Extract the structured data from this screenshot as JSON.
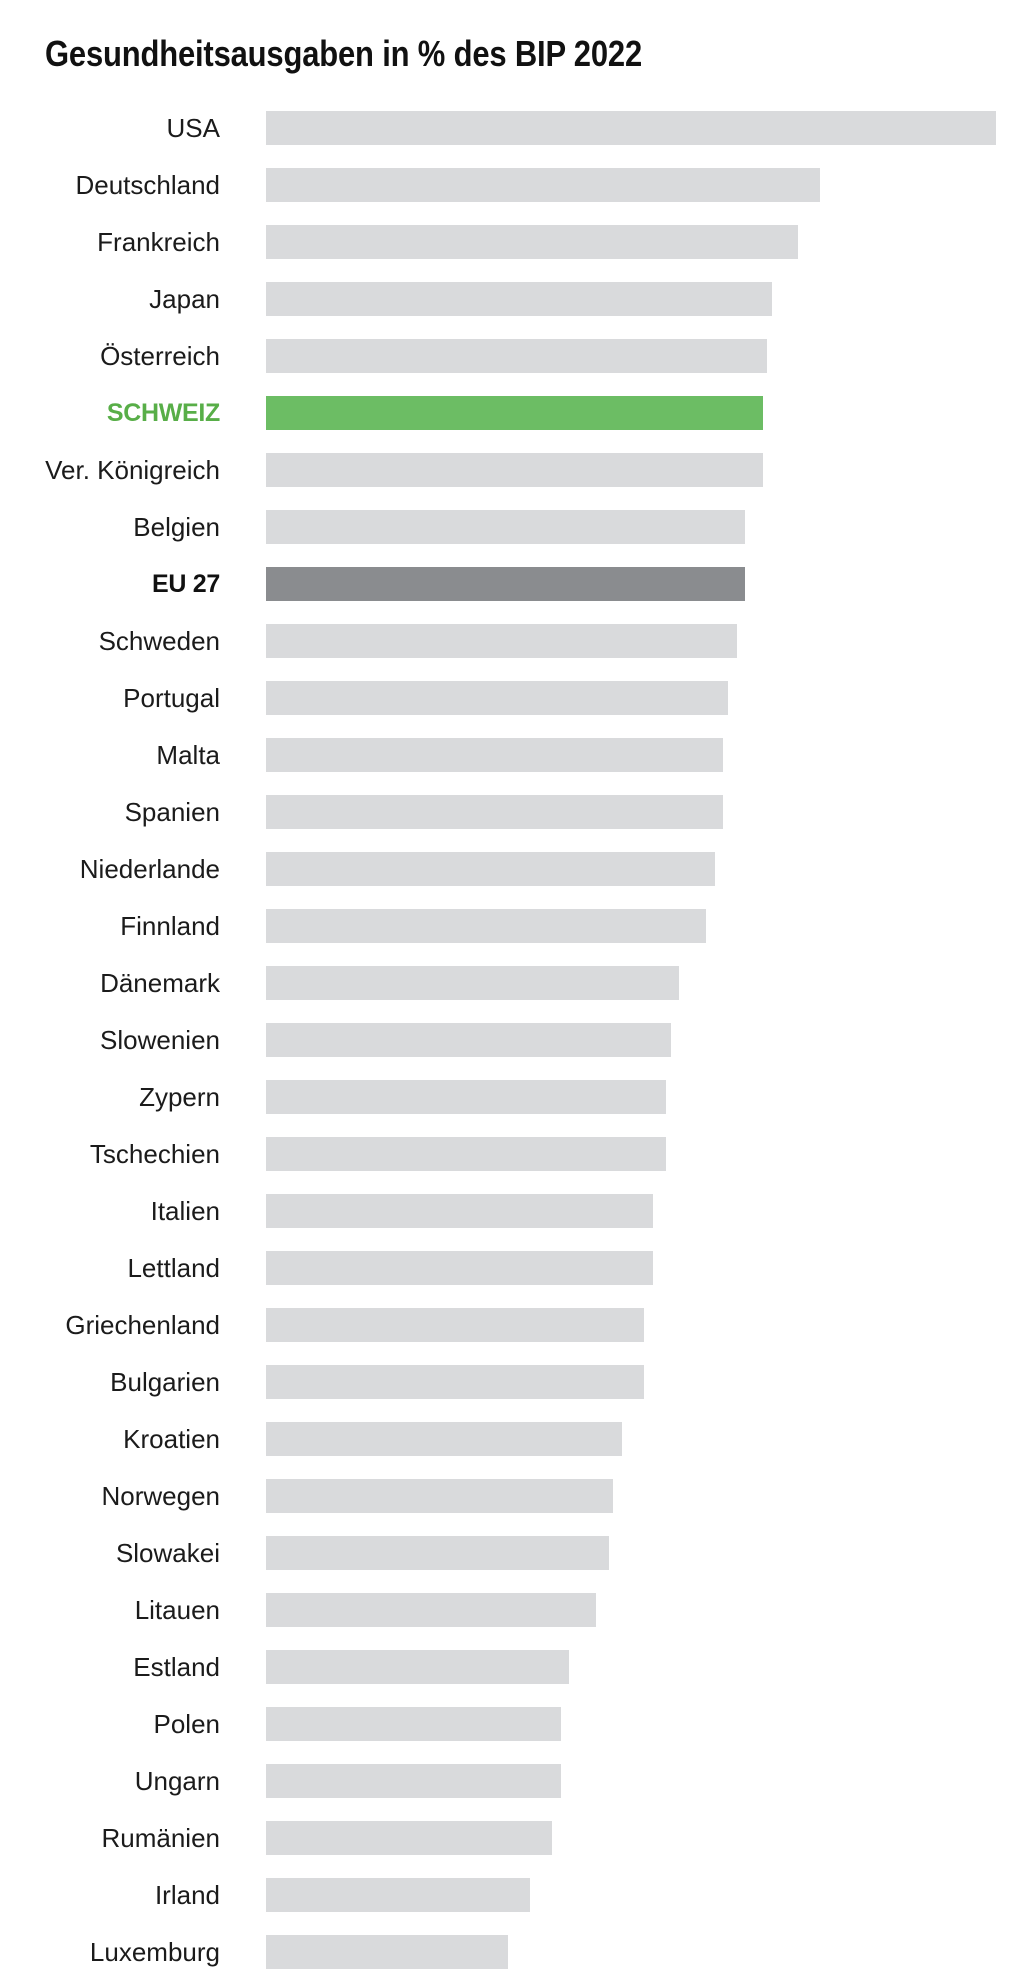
{
  "chart_data": {
    "type": "bar",
    "orientation": "horizontal",
    "title": "Gesundheitsausgaben in % des BIP 2022",
    "xlabel": "",
    "ylabel": "",
    "xlim": [
      0,
      16.6
    ],
    "grid": false,
    "legend": "none",
    "categories": [
      "USA",
      "Deutschland",
      "Frankreich",
      "Japan",
      "Österreich",
      "SCHWEIZ",
      "Ver. Königreich",
      "Belgien",
      "EU 27",
      "Schweden",
      "Portugal",
      "Malta",
      "Spanien",
      "Niederlande",
      "Finnland",
      "Dänemark",
      "Slowenien",
      "Zypern",
      "Tschechien",
      "Italien",
      "Lettland",
      "Griechenland",
      "Bulgarien",
      "Kroatien",
      "Norwegen",
      "Slowakei",
      "Litauen",
      "Estland",
      "Polen",
      "Ungarn",
      "Rumänien",
      "Irland",
      "Luxemburg"
    ],
    "values": [
      16.6,
      12.6,
      12.1,
      11.5,
      11.4,
      11.3,
      11.3,
      10.9,
      10.9,
      10.7,
      10.5,
      10.4,
      10.4,
      10.2,
      10.0,
      9.4,
      9.2,
      9.1,
      9.1,
      8.8,
      8.8,
      8.6,
      8.6,
      8.1,
      7.9,
      7.8,
      7.5,
      6.9,
      6.7,
      6.7,
      6.5,
      6.0,
      5.5
    ],
    "colors": {
      "bar": "#d9dadc",
      "label": "#1b1b1b",
      "title": "#111111"
    },
    "highlights": [
      {
        "category": "SCHWEIZ",
        "bar_color": "#6cbd64",
        "label_color": "#58ae48"
      },
      {
        "category": "EU 27",
        "bar_color": "#8a8c8f",
        "label_color": "#111111"
      }
    ]
  }
}
